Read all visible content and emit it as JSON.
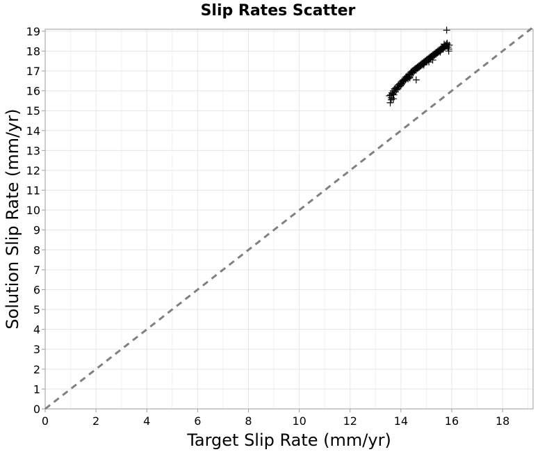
{
  "chart_data": {
    "type": "scatter",
    "title": "Slip Rates Scatter",
    "xlabel": "Target Slip Rate (mm/yr)",
    "ylabel": "Solution Slip Rate (mm/yr)",
    "xlim": [
      0,
      19.2
    ],
    "ylim": [
      0,
      19.1
    ],
    "x_ticks": [
      0,
      2,
      4,
      6,
      8,
      10,
      12,
      14,
      16,
      18
    ],
    "y_ticks": [
      0,
      1,
      2,
      3,
      4,
      5,
      6,
      7,
      8,
      9,
      10,
      11,
      12,
      13,
      14,
      15,
      16,
      17,
      18,
      19
    ],
    "grid": true,
    "marker": "plus",
    "marker_color": "#000000",
    "reference_line": {
      "style": "dashed",
      "color": "#808080",
      "from": [
        0,
        0
      ],
      "to": [
        19.2,
        19.2
      ]
    },
    "series": [
      {
        "x": [
          13.55,
          13.58,
          13.6,
          13.62,
          13.65,
          13.68,
          13.7,
          13.72,
          13.75,
          13.78,
          13.8,
          13.83,
          13.85,
          13.88,
          13.9,
          13.93,
          13.95,
          13.98,
          14.0,
          14.03,
          14.05,
          14.08,
          14.1,
          14.13,
          14.15,
          14.18,
          14.2,
          14.23,
          14.25,
          14.28,
          14.3,
          14.33,
          14.35,
          14.38,
          14.4,
          14.43,
          14.45,
          14.48,
          14.5,
          14.53,
          14.55,
          14.58,
          14.6,
          14.63,
          14.65,
          14.68,
          14.7,
          14.73,
          14.75,
          14.78,
          14.8,
          14.83,
          14.85,
          14.88,
          14.9,
          14.93,
          14.95,
          14.98,
          15.0,
          15.03,
          15.05,
          15.08,
          15.1,
          15.13,
          15.15,
          15.18,
          15.2,
          15.23,
          15.25,
          15.28,
          15.3,
          15.33,
          15.35,
          15.38,
          15.4,
          15.43,
          15.45,
          15.48,
          15.5,
          15.53,
          15.55,
          15.58,
          15.6,
          15.63,
          15.65,
          15.68,
          15.7,
          15.73,
          15.75,
          15.78,
          15.8,
          15.83,
          15.85,
          15.88,
          15.9,
          13.7,
          14.0,
          14.35,
          14.6,
          14.9,
          15.25,
          15.55,
          15.8,
          15.82,
          13.62,
          14.2,
          14.55,
          15.1,
          15.7,
          15.88
        ],
        "y": [
          15.75,
          15.4,
          15.8,
          15.65,
          15.9,
          15.85,
          16.0,
          15.8,
          16.1,
          15.95,
          16.15,
          16.05,
          16.2,
          16.1,
          16.3,
          16.2,
          16.35,
          16.25,
          16.4,
          16.35,
          16.5,
          16.45,
          16.55,
          16.5,
          16.6,
          16.55,
          16.7,
          16.65,
          16.75,
          16.6,
          16.8,
          16.7,
          16.85,
          16.8,
          16.95,
          16.9,
          17.0,
          16.9,
          17.05,
          17.0,
          17.1,
          17.05,
          17.15,
          17.1,
          17.2,
          17.15,
          17.25,
          17.2,
          17.3,
          17.25,
          17.35,
          17.3,
          17.4,
          17.35,
          17.45,
          17.4,
          17.5,
          17.45,
          17.55,
          17.5,
          17.6,
          17.55,
          17.65,
          17.6,
          17.7,
          17.65,
          17.75,
          17.7,
          17.8,
          17.75,
          17.85,
          17.8,
          17.9,
          17.85,
          17.95,
          17.9,
          18.0,
          17.95,
          18.05,
          18.0,
          18.1,
          18.05,
          18.15,
          18.1,
          18.2,
          18.15,
          18.25,
          18.2,
          18.3,
          18.25,
          18.35,
          18.3,
          18.2,
          18.1,
          18.3,
          15.6,
          16.3,
          16.65,
          16.55,
          17.3,
          17.55,
          17.95,
          19.05,
          18.4,
          15.55,
          16.6,
          17.05,
          17.45,
          18.35,
          18.0
        ]
      }
    ]
  }
}
